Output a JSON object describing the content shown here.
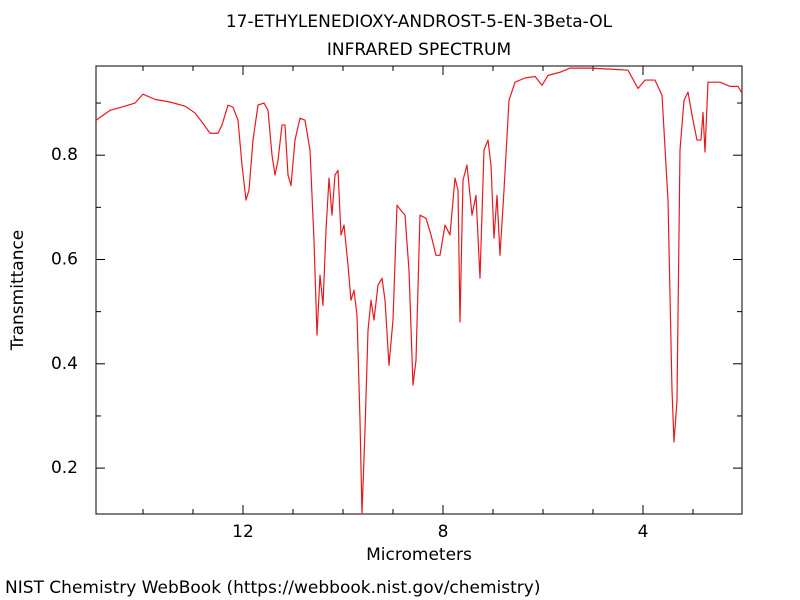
{
  "chart_data": {
    "type": "line",
    "title": "17-ETHYLENEDIOXY-ANDROST-5-EN-3Beta-OL",
    "subtitle": "INFRARED SPECTRUM",
    "x_label": "Micrometers",
    "y_label": "Transmittance",
    "source": "NIST Chemistry WebBook (https://webbook.nist.gov/chemistry)",
    "xlim": [
      14.94,
      2.02
    ],
    "ylim": [
      0.112,
      0.971
    ],
    "xticks": [
      12,
      8,
      4
    ],
    "xminorticks": [
      14,
      13,
      11,
      10,
      9,
      7,
      6,
      5,
      3
    ],
    "yticks": [
      0.2,
      0.4,
      0.6,
      0.8
    ],
    "yminorticks": [
      0.3,
      0.5,
      0.7,
      0.9
    ],
    "grid": false,
    "series": [
      {
        "name": "spectrum",
        "color": "#e8191e",
        "x": [
          14.94,
          14.66,
          14.36,
          14.16,
          14.0,
          13.76,
          13.46,
          13.16,
          12.96,
          12.8,
          12.66,
          12.5,
          12.42,
          12.3,
          12.2,
          12.1,
          12.02,
          11.94,
          11.88,
          11.8,
          11.7,
          11.58,
          11.5,
          11.42,
          11.36,
          11.3,
          11.22,
          11.16,
          11.1,
          11.04,
          10.96,
          10.86,
          10.76,
          10.66,
          10.58,
          10.52,
          10.46,
          10.4,
          10.34,
          10.28,
          10.22,
          10.16,
          10.1,
          10.04,
          9.98,
          9.9,
          9.84,
          9.78,
          9.72,
          9.66,
          9.62,
          9.56,
          9.5,
          9.44,
          9.38,
          9.3,
          9.22,
          9.16,
          9.08,
          9.0,
          8.92,
          8.84,
          8.76,
          8.68,
          8.6,
          8.54,
          8.46,
          8.34,
          8.24,
          8.14,
          8.06,
          7.96,
          7.86,
          7.76,
          7.7,
          7.66,
          7.6,
          7.52,
          7.42,
          7.34,
          7.26,
          7.18,
          7.1,
          7.04,
          6.98,
          6.92,
          6.86,
          6.78,
          6.68,
          6.56,
          6.36,
          6.16,
          6.02,
          5.9,
          5.66,
          5.46,
          5.06,
          4.66,
          4.3,
          4.1,
          3.96,
          3.76,
          3.62,
          3.5,
          3.42,
          3.38,
          3.32,
          3.26,
          3.18,
          3.1,
          3.02,
          2.92,
          2.84,
          2.8,
          2.76,
          2.7,
          2.46,
          2.26,
          2.1,
          2.02
        ],
        "values": [
          0.867,
          0.886,
          0.894,
          0.9,
          0.917,
          0.907,
          0.902,
          0.894,
          0.881,
          0.861,
          0.842,
          0.842,
          0.858,
          0.896,
          0.892,
          0.867,
          0.781,
          0.714,
          0.733,
          0.829,
          0.896,
          0.9,
          0.886,
          0.8,
          0.762,
          0.79,
          0.858,
          0.858,
          0.762,
          0.742,
          0.829,
          0.871,
          0.867,
          0.81,
          0.637,
          0.455,
          0.57,
          0.512,
          0.656,
          0.756,
          0.685,
          0.762,
          0.771,
          0.647,
          0.666,
          0.589,
          0.522,
          0.541,
          0.493,
          0.292,
          0.112,
          0.273,
          0.464,
          0.522,
          0.484,
          0.551,
          0.564,
          0.522,
          0.397,
          0.484,
          0.704,
          0.694,
          0.685,
          0.579,
          0.359,
          0.407,
          0.685,
          0.679,
          0.647,
          0.608,
          0.608,
          0.666,
          0.647,
          0.756,
          0.733,
          0.48,
          0.752,
          0.781,
          0.685,
          0.723,
          0.564,
          0.81,
          0.829,
          0.781,
          0.641,
          0.723,
          0.608,
          0.733,
          0.905,
          0.94,
          0.948,
          0.951,
          0.934,
          0.953,
          0.959,
          0.967,
          0.967,
          0.965,
          0.963,
          0.928,
          0.944,
          0.944,
          0.915,
          0.714,
          0.349,
          0.25,
          0.33,
          0.81,
          0.905,
          0.921,
          0.877,
          0.829,
          0.829,
          0.882,
          0.806,
          0.94,
          0.94,
          0.932,
          0.932,
          0.919
        ]
      }
    ]
  }
}
